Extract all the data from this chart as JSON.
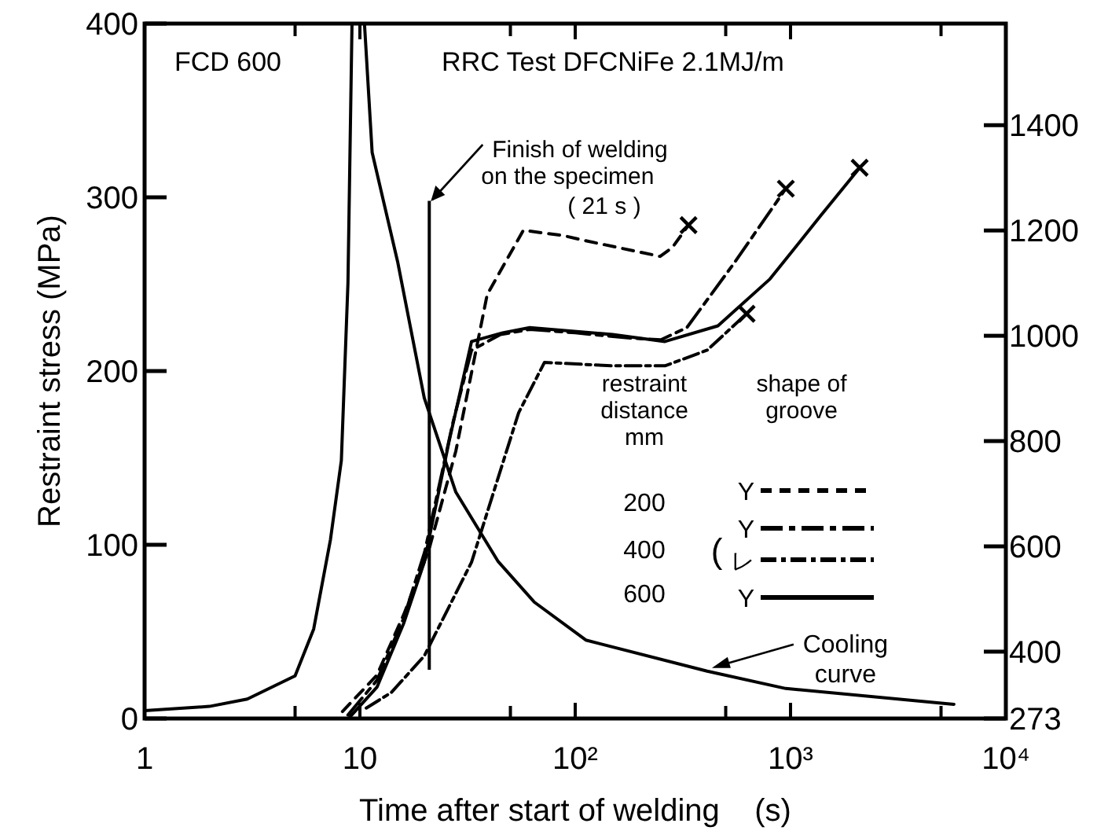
{
  "chart_data": {
    "type": "line",
    "xlabel": "Time after start of welding    (s)",
    "ylabel": "Restraint stress (MPa)",
    "log": "x",
    "grid": false,
    "legend": "bottom right",
    "xlim": [
      1,
      10000
    ],
    "xticks": [
      1,
      {
        "value": 5,
        "label": null
      },
      10,
      {
        "value": 50,
        "label": null
      },
      {
        "value": 100,
        "label": "10²"
      },
      {
        "value": 500,
        "label": null
      },
      {
        "value": 1000,
        "label": "10³"
      },
      {
        "value": 5000,
        "label": null
      },
      {
        "value": 10000,
        "label": "10⁴"
      }
    ],
    "ylim": [
      0,
      400
    ],
    "yticks": [
      0,
      100,
      200,
      300,
      400
    ],
    "y2lim": [
      273,
      1593
    ],
    "y2ticks": [
      273,
      400,
      600,
      800,
      1000,
      1200,
      1400
    ],
    "series": [
      {
        "name": "Y",
        "color": "#000000",
        "line_style": "dashed",
        "x": [
          8.3,
          12,
          16,
          20.9,
          27.9,
          39,
          57.4,
          87.7,
          112,
          248,
          282,
          336
        ],
        "values": [
          4,
          25,
          60,
          97,
          154,
          244,
          281,
          278,
          275,
          266,
          271,
          284
        ]
      },
      {
        "name": "Y",
        "color": "#000000",
        "line_style": "dashed",
        "x": [
          8.8,
          12,
          16,
          20,
          27,
          33,
          45,
          61.5,
          100,
          180,
          250,
          330,
          546,
          951
        ],
        "values": [
          2,
          22,
          58,
          96,
          170,
          212,
          221,
          224,
          222,
          219,
          218,
          225,
          262,
          305
        ]
      },
      {
        "name": "レ",
        "color": "#000000",
        "line_style": "dashed",
        "x": [
          10.7,
          14,
          19.9,
          33,
          54.6,
          72,
          149,
          261,
          410,
          625
        ],
        "values": [
          6,
          15,
          36,
          90,
          176,
          205,
          203,
          203,
          212,
          233
        ]
      },
      {
        "name": "Y",
        "color": "#000000",
        "line_style": "solid",
        "x": [
          9,
          12,
          16,
          19.9,
          26,
          33,
          46,
          61.5,
          149,
          261,
          460,
          803,
          1393,
          2094
        ],
        "values": [
          1,
          18,
          55,
          90,
          160,
          217,
          222,
          225,
          221,
          217,
          226,
          253,
          290,
          317
        ]
      },
      {
        "name": "Cooling curve",
        "color": "#000000",
        "line_style": "solid",
        "axis": "y2",
        "x": [
          1,
          2,
          3,
          5,
          6.1,
          7.3,
          8.2,
          8.8,
          9.19,
          10.5,
          11.4,
          15,
          19.9,
          27.9,
          43.9,
          64.6,
          112,
          410,
          951,
          5740
        ],
        "values": [
          288,
          296,
          310,
          354,
          443,
          613,
          763,
          1100,
          1593,
          1593,
          1348,
          1139,
          882,
          703,
          571,
          494,
          422,
          363,
          330,
          300
        ]
      },
      {
        "type": "scatter",
        "marker": "cross",
        "color": "#000000",
        "x": [
          336,
          951,
          625,
          2094
        ],
        "values": [
          284,
          305,
          233,
          317
        ]
      }
    ],
    "ref_lines": [
      {
        "axis": "x",
        "value": 21,
        "label": "Finish of welding on the specimen ( 21 s )",
        "color": "#000000"
      }
    ],
    "annotations": [
      "FCD 600",
      "RRC  Test  DFCNiFe  2.1MJ/m",
      "restraint distance mm",
      "shape of groove",
      "200",
      "400",
      "600",
      "("
    ]
  }
}
